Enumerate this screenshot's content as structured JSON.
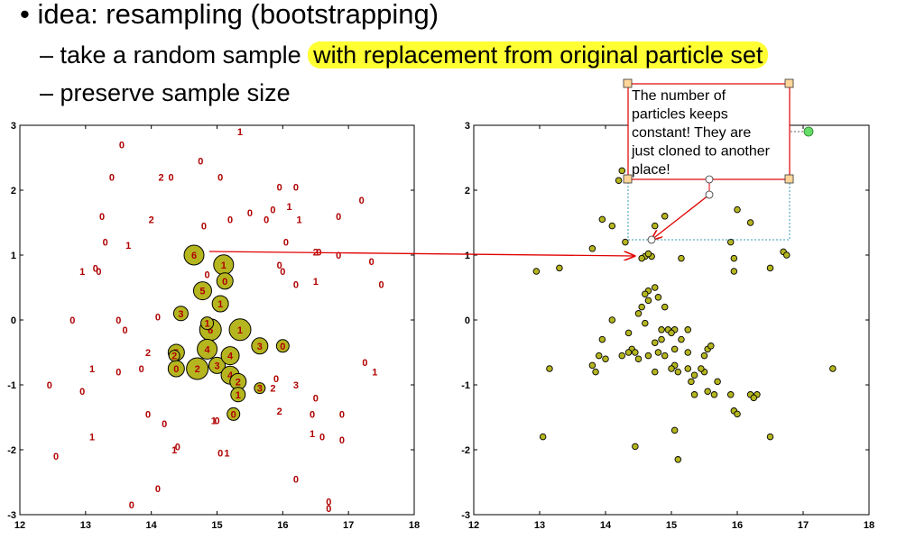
{
  "slide": {
    "bullet_main": "• idea: resampling (bootstrapping)",
    "sub1_prefix": "– take a random sample ",
    "sub1_highlight": "with replacement from original particle set",
    "sub2": "– preserve sample size"
  },
  "callout": {
    "lines": [
      "The number of",
      "particles keeps",
      "constant! They are",
      "just cloned to another",
      "place!"
    ]
  },
  "colors": {
    "particle_fill": "#b5b51f",
    "label_color": "#b00000",
    "arrow_color": "#e00000",
    "highlight": "#ffff33"
  },
  "chart_data": [
    {
      "type": "scatter",
      "xlim": [
        12,
        18
      ],
      "ylim": [
        -3,
        3
      ],
      "xticks": [
        "12",
        "13",
        "14",
        "15",
        "16",
        "17",
        "18"
      ],
      "yticks": [
        "-3",
        "-2",
        "-1",
        "0",
        "1",
        "2",
        "3"
      ],
      "circles": [
        {
          "x": 14.65,
          "y": 1.0,
          "r": 11,
          "label": "6"
        },
        {
          "x": 15.1,
          "y": 0.85,
          "r": 11,
          "label": "1"
        },
        {
          "x": 15.12,
          "y": 0.6,
          "r": 9,
          "label": "0"
        },
        {
          "x": 14.78,
          "y": 0.45,
          "r": 10,
          "label": "5"
        },
        {
          "x": 15.05,
          "y": 0.25,
          "r": 9,
          "label": "1"
        },
        {
          "x": 14.45,
          "y": 0.1,
          "r": 8,
          "label": "3"
        },
        {
          "x": 14.9,
          "y": -0.15,
          "r": 12,
          "label": "6"
        },
        {
          "x": 15.35,
          "y": -0.15,
          "r": 12,
          "label": "1"
        },
        {
          "x": 14.85,
          "y": -0.45,
          "r": 11,
          "label": "4"
        },
        {
          "x": 15.65,
          "y": -0.4,
          "r": 9,
          "label": "3"
        },
        {
          "x": 14.38,
          "y": -0.5,
          "r": 9,
          "label": "5"
        },
        {
          "x": 14.38,
          "y": -0.75,
          "r": 9,
          "label": "0"
        },
        {
          "x": 14.7,
          "y": -0.75,
          "r": 12,
          "label": "2"
        },
        {
          "x": 15.0,
          "y": -0.7,
          "r": 9,
          "label": "3"
        },
        {
          "x": 15.2,
          "y": -0.55,
          "r": 10,
          "label": "4"
        },
        {
          "x": 15.2,
          "y": -0.85,
          "r": 10,
          "label": "4"
        },
        {
          "x": 15.32,
          "y": -0.95,
          "r": 9,
          "label": "2"
        },
        {
          "x": 15.32,
          "y": -1.15,
          "r": 8,
          "label": "1"
        },
        {
          "x": 16.0,
          "y": -0.4,
          "r": 7,
          "label": "0"
        },
        {
          "x": 14.35,
          "y": -0.55,
          "r": 6,
          "label": "2"
        },
        {
          "x": 14.85,
          "y": -0.05,
          "r": 7,
          "label": "1"
        },
        {
          "x": 15.65,
          "y": -1.05,
          "r": 6,
          "label": "3"
        },
        {
          "x": 15.25,
          "y": -1.45,
          "r": 7,
          "label": "0"
        }
      ],
      "labels": [
        {
          "x": 13.55,
          "y": 2.7,
          "t": "0"
        },
        {
          "x": 15.35,
          "y": 2.9,
          "t": "1"
        },
        {
          "x": 13.4,
          "y": 2.2,
          "t": "0"
        },
        {
          "x": 14.15,
          "y": 2.2,
          "t": "2"
        },
        {
          "x": 14.3,
          "y": 2.2,
          "t": "0"
        },
        {
          "x": 14.75,
          "y": 2.45,
          "t": "0"
        },
        {
          "x": 15.05,
          "y": 2.2,
          "t": "0"
        },
        {
          "x": 15.95,
          "y": 2.05,
          "t": "0"
        },
        {
          "x": 16.2,
          "y": 2.05,
          "t": "0"
        },
        {
          "x": 15.85,
          "y": 1.7,
          "t": "0"
        },
        {
          "x": 16.1,
          "y": 1.75,
          "t": "1"
        },
        {
          "x": 16.25,
          "y": 1.55,
          "t": "1"
        },
        {
          "x": 16.85,
          "y": 1.6,
          "t": "0"
        },
        {
          "x": 17.2,
          "y": 1.85,
          "t": "0"
        },
        {
          "x": 13.25,
          "y": 1.6,
          "t": "0"
        },
        {
          "x": 14.0,
          "y": 1.55,
          "t": "2"
        },
        {
          "x": 14.8,
          "y": 1.45,
          "t": "0"
        },
        {
          "x": 15.2,
          "y": 1.55,
          "t": "0"
        },
        {
          "x": 15.5,
          "y": 1.65,
          "t": "0"
        },
        {
          "x": 15.75,
          "y": 1.55,
          "t": "0"
        },
        {
          "x": 13.3,
          "y": 1.2,
          "t": "0"
        },
        {
          "x": 13.65,
          "y": 1.15,
          "t": "1"
        },
        {
          "x": 16.05,
          "y": 1.2,
          "t": "0"
        },
        {
          "x": 16.5,
          "y": 1.05,
          "t": "2"
        },
        {
          "x": 16.55,
          "y": 1.05,
          "t": "0"
        },
        {
          "x": 16.85,
          "y": 1.0,
          "t": "0"
        },
        {
          "x": 17.35,
          "y": 0.9,
          "t": "0"
        },
        {
          "x": 13.15,
          "y": 0.8,
          "t": "0"
        },
        {
          "x": 13.2,
          "y": 0.75,
          "t": "0"
        },
        {
          "x": 12.95,
          "y": 0.75,
          "t": "1"
        },
        {
          "x": 15.95,
          "y": 0.85,
          "t": "0"
        },
        {
          "x": 16.0,
          "y": 0.75,
          "t": "0"
        },
        {
          "x": 16.2,
          "y": 0.55,
          "t": "0"
        },
        {
          "x": 16.5,
          "y": 0.6,
          "t": "1"
        },
        {
          "x": 17.5,
          "y": 0.55,
          "t": "0"
        },
        {
          "x": 14.85,
          "y": 0.7,
          "t": "0"
        },
        {
          "x": 12.8,
          "y": 0.0,
          "t": "0"
        },
        {
          "x": 13.5,
          "y": 0.0,
          "t": "0"
        },
        {
          "x": 13.6,
          "y": -0.15,
          "t": "0"
        },
        {
          "x": 14.1,
          "y": 0.05,
          "t": "0"
        },
        {
          "x": 13.95,
          "y": -0.5,
          "t": "2"
        },
        {
          "x": 13.85,
          "y": -0.75,
          "t": "0"
        },
        {
          "x": 13.1,
          "y": -0.75,
          "t": "1"
        },
        {
          "x": 13.5,
          "y": -0.8,
          "t": "0"
        },
        {
          "x": 12.45,
          "y": -1.0,
          "t": "0"
        },
        {
          "x": 12.95,
          "y": -1.1,
          "t": "0"
        },
        {
          "x": 13.95,
          "y": -1.45,
          "t": "0"
        },
        {
          "x": 14.2,
          "y": -1.6,
          "t": "0"
        },
        {
          "x": 14.95,
          "y": -1.55,
          "t": "1"
        },
        {
          "x": 15.9,
          "y": -0.9,
          "t": "0"
        },
        {
          "x": 16.2,
          "y": -1.0,
          "t": "3"
        },
        {
          "x": 16.5,
          "y": -1.2,
          "t": "0"
        },
        {
          "x": 15.95,
          "y": -1.4,
          "t": "2"
        },
        {
          "x": 16.45,
          "y": -1.45,
          "t": "0"
        },
        {
          "x": 16.9,
          "y": -1.45,
          "t": "0"
        },
        {
          "x": 17.25,
          "y": -0.65,
          "t": "0"
        },
        {
          "x": 17.4,
          "y": -0.8,
          "t": "1"
        },
        {
          "x": 15.85,
          "y": -1.05,
          "t": "2"
        },
        {
          "x": 16.45,
          "y": -1.75,
          "t": "1"
        },
        {
          "x": 16.6,
          "y": -1.8,
          "t": "0"
        },
        {
          "x": 16.9,
          "y": -1.85,
          "t": "0"
        },
        {
          "x": 13.1,
          "y": -1.8,
          "t": "1"
        },
        {
          "x": 12.55,
          "y": -2.1,
          "t": "0"
        },
        {
          "x": 14.4,
          "y": -1.95,
          "t": "0"
        },
        {
          "x": 14.35,
          "y": -2.0,
          "t": "1"
        },
        {
          "x": 15.05,
          "y": -2.05,
          "t": "0"
        },
        {
          "x": 15.15,
          "y": -2.05,
          "t": "1"
        },
        {
          "x": 16.2,
          "y": -2.45,
          "t": "0"
        },
        {
          "x": 14.1,
          "y": -2.6,
          "t": "0"
        },
        {
          "x": 13.7,
          "y": -2.85,
          "t": "0"
        },
        {
          "x": 16.7,
          "y": -2.8,
          "t": "0"
        },
        {
          "x": 16.7,
          "y": -2.9,
          "t": "0"
        },
        {
          "x": 15.0,
          "y": -1.55,
          "t": "0"
        }
      ]
    },
    {
      "type": "scatter",
      "xlim": [
        12,
        18
      ],
      "ylim": [
        -3,
        3
      ],
      "xticks": [
        "12",
        "13",
        "14",
        "15",
        "16",
        "17",
        "18"
      ],
      "yticks": [
        "-3",
        "-2",
        "-1",
        "0",
        "1",
        "2",
        "3"
      ],
      "points": [
        [
          14.25,
          2.3
        ],
        [
          14.45,
          2.45
        ],
        [
          14.2,
          2.15
        ],
        [
          13.95,
          1.55
        ],
        [
          14.1,
          1.45
        ],
        [
          14.75,
          1.45
        ],
        [
          14.9,
          1.6
        ],
        [
          13.8,
          1.1
        ],
        [
          14.3,
          1.2
        ],
        [
          16.0,
          1.7
        ],
        [
          16.2,
          1.5
        ],
        [
          15.95,
          0.95
        ],
        [
          15.95,
          0.75
        ],
        [
          16.5,
          0.8
        ],
        [
          16.7,
          1.05
        ],
        [
          16.75,
          1.0
        ],
        [
          15.9,
          1.2
        ],
        [
          15.15,
          0.95
        ],
        [
          14.6,
          0.98
        ],
        [
          14.7,
          0.98
        ],
        [
          14.65,
          1.02
        ],
        [
          14.55,
          0.95
        ],
        [
          12.95,
          0.75
        ],
        [
          13.3,
          0.8
        ],
        [
          14.65,
          0.45
        ],
        [
          14.75,
          0.5
        ],
        [
          14.8,
          0.35
        ],
        [
          14.6,
          0.4
        ],
        [
          14.65,
          0.3
        ],
        [
          14.55,
          0.2
        ],
        [
          14.9,
          0.2
        ],
        [
          14.5,
          0.1
        ],
        [
          14.6,
          -0.05
        ],
        [
          14.1,
          0.0
        ],
        [
          14.35,
          -0.2
        ],
        [
          14.85,
          -0.15
        ],
        [
          14.95,
          -0.15
        ],
        [
          15.05,
          -0.15
        ],
        [
          15.0,
          -0.2
        ],
        [
          15.25,
          -0.15
        ],
        [
          15.15,
          -0.3
        ],
        [
          14.85,
          -0.3
        ],
        [
          14.75,
          -0.35
        ],
        [
          14.8,
          -0.5
        ],
        [
          14.65,
          -0.55
        ],
        [
          14.4,
          -0.45
        ],
        [
          14.35,
          -0.5
        ],
        [
          14.45,
          -0.5
        ],
        [
          14.25,
          -0.55
        ],
        [
          14.5,
          -0.6
        ],
        [
          14.9,
          -0.55
        ],
        [
          15.05,
          -0.45
        ],
        [
          15.25,
          -0.5
        ],
        [
          15.55,
          -0.45
        ],
        [
          15.6,
          -0.4
        ],
        [
          15.5,
          -0.55
        ],
        [
          15.05,
          -0.7
        ],
        [
          15.0,
          -0.75
        ],
        [
          15.1,
          -0.8
        ],
        [
          15.25,
          -0.75
        ],
        [
          15.35,
          -0.85
        ],
        [
          15.3,
          -0.95
        ],
        [
          15.5,
          -0.8
        ],
        [
          15.35,
          -1.15
        ],
        [
          15.55,
          -1.1
        ],
        [
          15.65,
          -1.15
        ],
        [
          15.7,
          -0.95
        ],
        [
          15.9,
          -1.15
        ],
        [
          15.95,
          -1.4
        ],
        [
          16.0,
          -1.45
        ],
        [
          16.2,
          -1.15
        ],
        [
          16.3,
          -1.15
        ],
        [
          16.25,
          -1.2
        ],
        [
          16.5,
          -1.8
        ],
        [
          15.45,
          -0.75
        ],
        [
          14.75,
          -0.8
        ],
        [
          13.15,
          -0.75
        ],
        [
          13.8,
          -0.7
        ],
        [
          13.85,
          -0.8
        ],
        [
          13.9,
          -0.55
        ],
        [
          14.0,
          -0.6
        ],
        [
          13.95,
          -0.3
        ],
        [
          14.45,
          -1.95
        ],
        [
          15.05,
          -1.7
        ],
        [
          15.1,
          -2.15
        ],
        [
          13.05,
          -1.8
        ],
        [
          17.45,
          -0.75
        ]
      ]
    }
  ]
}
